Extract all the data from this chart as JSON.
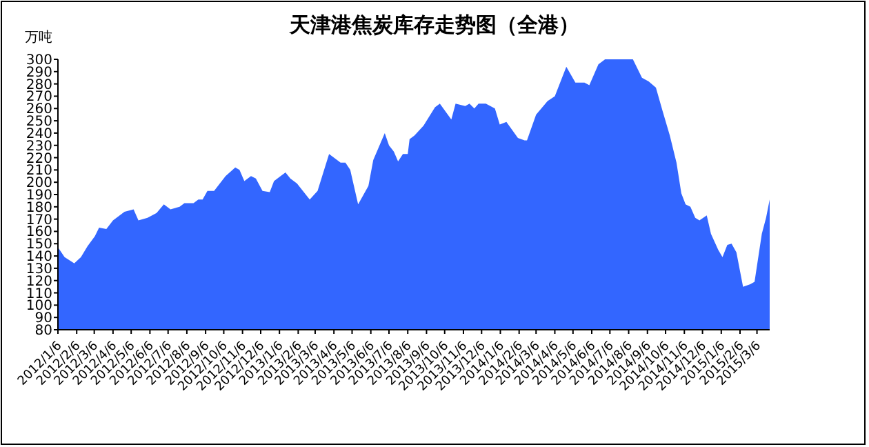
{
  "chart_data": {
    "type": "area",
    "title": "天津港焦炭库存走势图（全港）",
    "ylabel": "万吨",
    "color": "#3366ff",
    "grid": false,
    "legend": false,
    "ylim": [
      80,
      300
    ],
    "yticks": [
      80,
      90,
      100,
      110,
      120,
      130,
      140,
      150,
      160,
      170,
      180,
      190,
      200,
      210,
      220,
      230,
      240,
      250,
      260,
      270,
      280,
      290,
      300
    ],
    "xlim": [
      "2012-01-06",
      "2015-03-27"
    ],
    "xticks": [
      {
        "value": "2012-01-06",
        "label": "2012/1/6"
      },
      {
        "value": "2012-02-06",
        "label": "2012/2/6"
      },
      {
        "value": "2012-03-06",
        "label": "2012/3/6"
      },
      {
        "value": "2012-04-06",
        "label": "2012/4/6"
      },
      {
        "value": "2012-05-06",
        "label": "2012/5/6"
      },
      {
        "value": "2012-06-06",
        "label": "2012/6/6"
      },
      {
        "value": "2012-07-06",
        "label": "2012/7/6"
      },
      {
        "value": "2012-08-06",
        "label": "2012/8/6"
      },
      {
        "value": "2012-09-06",
        "label": "2012/9/6"
      },
      {
        "value": "2012-10-06",
        "label": "2012/10/6"
      },
      {
        "value": "2012-11-06",
        "label": "2012/11/6"
      },
      {
        "value": "2012-12-06",
        "label": "2012/12/6"
      },
      {
        "value": "2013-01-06",
        "label": "2013/1/6"
      },
      {
        "value": "2013-02-06",
        "label": "2013/2/6"
      },
      {
        "value": "2013-03-06",
        "label": "2013/3/6"
      },
      {
        "value": "2013-04-06",
        "label": "2013/4/6"
      },
      {
        "value": "2013-05-06",
        "label": "2013/5/6"
      },
      {
        "value": "2013-06-06",
        "label": "2013/6/6"
      },
      {
        "value": "2013-07-06",
        "label": "2013/7/6"
      },
      {
        "value": "2013-08-06",
        "label": "2013/8/6"
      },
      {
        "value": "2013-09-06",
        "label": "2013/9/6"
      },
      {
        "value": "2013-10-06",
        "label": "2013/10/6"
      },
      {
        "value": "2013-11-06",
        "label": "2013/11/6"
      },
      {
        "value": "2013-12-06",
        "label": "2013/12/6"
      },
      {
        "value": "2014-01-06",
        "label": "2014/1/6"
      },
      {
        "value": "2014-02-06",
        "label": "2014/2/6"
      },
      {
        "value": "2014-03-06",
        "label": "2014/3/6"
      },
      {
        "value": "2014-04-06",
        "label": "2014/4/6"
      },
      {
        "value": "2014-05-06",
        "label": "2014/5/6"
      },
      {
        "value": "2014-06-06",
        "label": "2014/6/6"
      },
      {
        "value": "2014-07-06",
        "label": "2014/7/6"
      },
      {
        "value": "2014-08-06",
        "label": "2014/8/6"
      },
      {
        "value": "2014-09-06",
        "label": "2014/9/6"
      },
      {
        "value": "2014-10-06",
        "label": "2014/10/6"
      },
      {
        "value": "2014-11-06",
        "label": "2014/11/6"
      },
      {
        "value": "2014-12-06",
        "label": "2014/12/6"
      },
      {
        "value": "2015-01-06",
        "label": "2015/1/6"
      },
      {
        "value": "2015-02-06",
        "label": "2015/2/6"
      },
      {
        "value": "2015-03-06",
        "label": "2015/3/6"
      }
    ],
    "x": [
      "2012-01-06",
      "2012-01-17",
      "2012-02-02",
      "2012-02-13",
      "2012-02-24",
      "2012-03-07",
      "2012-03-14",
      "2012-03-26",
      "2012-04-06",
      "2012-04-25",
      "2012-05-10",
      "2012-05-18",
      "2012-06-02",
      "2012-06-17",
      "2012-06-29",
      "2012-07-10",
      "2012-07-25",
      "2012-08-02",
      "2012-08-17",
      "2012-08-25",
      "2012-09-01",
      "2012-09-09",
      "2012-09-20",
      "2012-10-09",
      "2012-10-25",
      "2012-11-01",
      "2012-11-09",
      "2012-11-20",
      "2012-11-28",
      "2012-12-09",
      "2012-12-21",
      "2012-12-28",
      "2013-01-16",
      "2013-01-24",
      "2013-02-04",
      "2013-02-25",
      "2013-03-10",
      "2013-03-29",
      "2013-04-17",
      "2013-04-25",
      "2013-05-03",
      "2013-05-16",
      "2013-06-02",
      "2013-06-10",
      "2013-06-29",
      "2013-07-06",
      "2013-07-14",
      "2013-07-21",
      "2013-07-29",
      "2013-08-06",
      "2013-08-09",
      "2013-08-17",
      "2013-09-01",
      "2013-09-20",
      "2013-09-28",
      "2013-10-17",
      "2013-10-24",
      "2013-11-09",
      "2013-11-16",
      "2013-11-24",
      "2013-12-01",
      "2013-12-13",
      "2013-12-28",
      "2014-01-05",
      "2014-01-16",
      "2014-02-04",
      "2014-02-15",
      "2014-02-19",
      "2014-03-06",
      "2014-03-25",
      "2014-04-06",
      "2014-04-25",
      "2014-05-10",
      "2014-05-25",
      "2014-06-02",
      "2014-06-17",
      "2014-06-28",
      "2014-08-13",
      "2014-08-28",
      "2014-09-08",
      "2014-09-20",
      "2014-10-01",
      "2014-10-13",
      "2014-10-24",
      "2014-11-01",
      "2014-11-08",
      "2014-11-16",
      "2014-11-24",
      "2014-12-01",
      "2014-12-13",
      "2014-12-20",
      "2015-01-01",
      "2015-01-08",
      "2015-01-16",
      "2015-01-23",
      "2015-01-31",
      "2015-02-11",
      "2015-02-23",
      "2015-03-02",
      "2015-03-14",
      "2015-03-21",
      "2015-03-27"
    ],
    "values": [
      147,
      139,
      134,
      139,
      148,
      156,
      163,
      162,
      169,
      176,
      178,
      169,
      171,
      175,
      182,
      178,
      180,
      183,
      183,
      186,
      186,
      193,
      193,
      205,
      212,
      210,
      201,
      205,
      203,
      193,
      192,
      201,
      208,
      203,
      199,
      186,
      193,
      223,
      216,
      216,
      210,
      182,
      197,
      218,
      240,
      230,
      225,
      217,
      223,
      223,
      235,
      238,
      246,
      261,
      264,
      251,
      264,
      262,
      264,
      260,
      264,
      264,
      260,
      247,
      249,
      236,
      234,
      234,
      255,
      266,
      270,
      294,
      281,
      281,
      279,
      296,
      300,
      300,
      285,
      282,
      277,
      258,
      238,
      216,
      191,
      182,
      180,
      171,
      169,
      173,
      158,
      145,
      139,
      149,
      150,
      143,
      115,
      117,
      119,
      158,
      171,
      186
    ]
  }
}
